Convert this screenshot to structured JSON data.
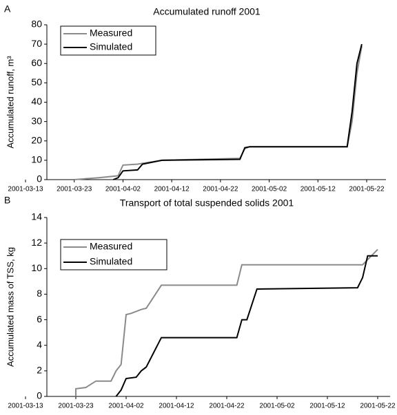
{
  "chart_data": [
    {
      "type": "line",
      "panel": "A",
      "title": "Accumulated runoff 2001",
      "y_label": "Accumulated runoff, m³",
      "xlim": [
        "2001-03-13",
        "2001-05-22"
      ],
      "xticks": [
        "2001-03-13",
        "2001-03-23",
        "2001-04-02",
        "2001-04-12",
        "2001-04-22",
        "2001-05-02",
        "2001-05-12",
        "2001-05-22"
      ],
      "ylim": [
        0,
        80
      ],
      "yticks": [
        0,
        10,
        20,
        30,
        40,
        50,
        60,
        70,
        80
      ],
      "series": [
        {
          "name": "Measured",
          "color": "#8a8a8a",
          "x": [
            "2001-03-23",
            "2001-03-28",
            "2001-04-01",
            "2001-04-02",
            "2001-04-05",
            "2001-04-10",
            "2001-04-26",
            "2001-04-27",
            "2001-04-28",
            "2001-05-18",
            "2001-05-19",
            "2001-05-20",
            "2001-05-21"
          ],
          "values": [
            0,
            1,
            2,
            7.5,
            8,
            10,
            11,
            16,
            17,
            17,
            30,
            55,
            69
          ]
        },
        {
          "name": "Simulated",
          "color": "#000000",
          "x": [
            "2001-03-31",
            "2001-04-01",
            "2001-04-02",
            "2001-04-05",
            "2001-04-06",
            "2001-04-10",
            "2001-04-26",
            "2001-04-27",
            "2001-04-28",
            "2001-05-18",
            "2001-05-19",
            "2001-05-20",
            "2001-05-21"
          ],
          "values": [
            0,
            1,
            4.5,
            5,
            8,
            10,
            10.5,
            16.5,
            17,
            17,
            35,
            60,
            70
          ]
        }
      ]
    },
    {
      "type": "line",
      "panel": "B",
      "title": "Transport of total suspended solids 2001",
      "y_label": "Accumulated mass of TSS, kg",
      "xlim": [
        "2001-03-13",
        "2001-05-22"
      ],
      "xticks": [
        "2001-03-13",
        "2001-03-23",
        "2001-04-02",
        "2001-04-12",
        "2001-04-22",
        "2001-05-02",
        "2001-05-12",
        "2001-05-22"
      ],
      "ylim": [
        0,
        14
      ],
      "yticks": [
        0,
        2,
        4,
        6,
        8,
        10,
        12,
        14
      ],
      "series": [
        {
          "name": "Measured",
          "color": "#8a8a8a",
          "x": [
            "2001-03-23",
            "2001-03-23",
            "2001-03-25",
            "2001-03-27",
            "2001-03-30",
            "2001-03-31",
            "2001-04-01",
            "2001-04-02",
            "2001-04-03",
            "2001-04-05",
            "2001-04-06",
            "2001-04-09",
            "2001-04-24",
            "2001-04-25",
            "2001-05-19",
            "2001-05-22"
          ],
          "values": [
            0,
            0.6,
            0.7,
            1.2,
            1.2,
            2,
            2.5,
            6.4,
            6.5,
            6.8,
            6.9,
            8.7,
            8.7,
            10.3,
            10.3,
            11.5
          ]
        },
        {
          "name": "Simulated",
          "color": "#000000",
          "x": [
            "2001-03-31",
            "2001-04-01",
            "2001-04-02",
            "2001-04-04",
            "2001-04-05",
            "2001-04-06",
            "2001-04-09",
            "2001-04-24",
            "2001-04-25",
            "2001-04-26",
            "2001-04-28",
            "2001-05-18",
            "2001-05-19",
            "2001-05-20",
            "2001-05-22"
          ],
          "values": [
            0,
            0.5,
            1.4,
            1.5,
            2,
            2.3,
            4.6,
            4.6,
            6,
            6,
            8.4,
            8.5,
            9.3,
            11,
            11
          ]
        }
      ]
    }
  ]
}
